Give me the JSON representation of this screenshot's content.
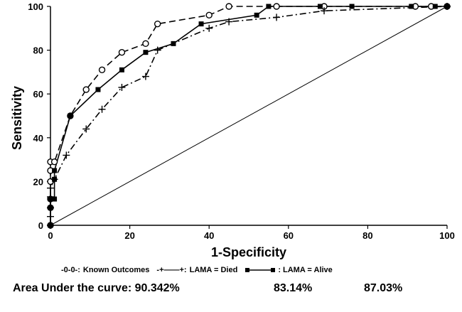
{
  "chart_data": {
    "type": "line",
    "xlabel": "1-Specificity",
    "ylabel": "Sensitivity",
    "xlim": [
      0,
      100
    ],
    "ylim": [
      0,
      100
    ],
    "x_ticks": [
      "0",
      "20",
      "40",
      "60",
      "80",
      "100"
    ],
    "y_ticks": [
      "0",
      "20",
      "40",
      "60",
      "80",
      "100"
    ],
    "grid": false,
    "reference_line": {
      "x": [
        0,
        100
      ],
      "y": [
        0,
        100
      ]
    },
    "series": [
      {
        "name": "Known Outcomes",
        "legend_prefix": "-0-0-:",
        "style": "dashed",
        "marker": "open-circle",
        "color": "#000000",
        "x": [
          0,
          0,
          0,
          0,
          0,
          0,
          1,
          5,
          9,
          13,
          18,
          24,
          27,
          40,
          45,
          57,
          69,
          92,
          96,
          100
        ],
        "y": [
          0,
          8,
          12,
          20,
          25,
          29,
          29,
          50,
          62,
          71,
          79,
          83,
          92,
          96,
          100,
          100,
          100,
          100,
          100,
          100
        ]
      },
      {
        "name": "LAMA = Died",
        "legend_prefix": "-+——+:",
        "style": "dash-dot",
        "marker": "plus",
        "color": "#000000",
        "x": [
          0,
          0,
          0,
          0,
          0,
          1,
          4,
          9,
          13,
          18,
          24,
          27,
          40,
          45,
          57,
          69,
          100
        ],
        "y": [
          0,
          4,
          8,
          13,
          17,
          21,
          32,
          44,
          53,
          63,
          68,
          80,
          90,
          93,
          95,
          98,
          100
        ]
      },
      {
        "name": "LAMA = Alive",
        "legend_prefix": ":",
        "style": "solid",
        "marker": "filled-square",
        "color": "#000000",
        "x": [
          0,
          0,
          0,
          1,
          1,
          1,
          5,
          12,
          18,
          24,
          31,
          38,
          52,
          55,
          68,
          76,
          91,
          97,
          100
        ],
        "y": [
          0,
          8,
          12,
          12,
          21,
          25,
          50,
          62,
          71,
          79,
          83,
          92,
          96,
          100,
          100,
          100,
          100,
          100,
          100
        ]
      }
    ]
  },
  "auc": {
    "label": "Area Under the curve: 90.342%",
    "value_2": "83.14%",
    "value_3": "87.03%"
  }
}
